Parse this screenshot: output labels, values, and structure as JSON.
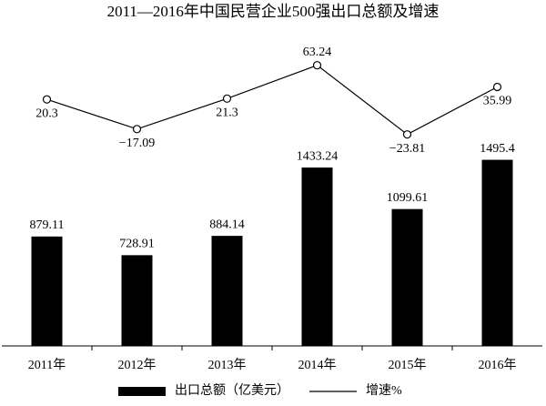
{
  "chart_data": {
    "type": "bar_line",
    "title": "2011—2016年中国民营企业500强出口总额及增速",
    "categories": [
      "2011年",
      "2012年",
      "2013年",
      "2014年",
      "2015年",
      "2016年"
    ],
    "series": [
      {
        "name": "出口总额（亿美元）",
        "type": "bar",
        "color": "#000000",
        "values": [
          879.11,
          728.91,
          884.14,
          1433.24,
          1099.61,
          1495.4
        ]
      },
      {
        "name": "增速%",
        "type": "line",
        "axis": "y2",
        "color": "#000000",
        "values": [
          20.3,
          -17.09,
          21.3,
          63.24,
          -23.81,
          35.99
        ],
        "value_labels": [
          "20.3",
          "−17.09",
          "21.3",
          "63.24",
          "−23.81",
          "35.99"
        ]
      }
    ],
    "ylim": [
      0,
      2560
    ],
    "y2lim": [
      -290,
      111
    ]
  }
}
